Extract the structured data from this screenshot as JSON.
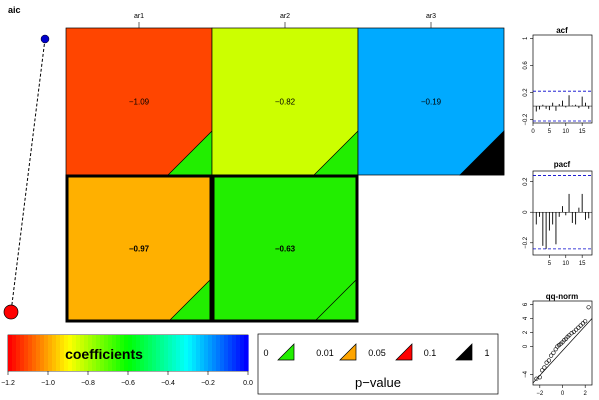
{
  "chart_data": [
    {
      "type": "heatmap",
      "title": "",
      "columns": [
        "ar1",
        "ar2",
        "ar3"
      ],
      "rows": [
        [
          {
            "value": -1.09,
            "color": "#FF4500",
            "pvalue_marker": "green",
            "highlighted": false
          },
          {
            "value": -0.82,
            "color": "#CCFF00",
            "pvalue_marker": "green",
            "highlighted": false
          },
          {
            "value": -0.19,
            "color": "#00AAFF",
            "pvalue_marker": "black",
            "highlighted": false
          }
        ],
        [
          {
            "value": -0.97,
            "color": "#FFB000",
            "pvalue_marker": "green",
            "highlighted": true
          },
          {
            "value": -0.63,
            "color": "#22EE00",
            "pvalue_marker": "green",
            "highlighted": true
          },
          null
        ]
      ],
      "row_selector": {
        "label": "aic",
        "points": [
          {
            "row": 1,
            "color": "#0000CC"
          },
          {
            "row": 2,
            "color": "#FF0000"
          }
        ]
      }
    },
    {
      "type": "bar",
      "title": "acf",
      "x": [
        1,
        2,
        3,
        4,
        5,
        6,
        7,
        8,
        9,
        10,
        11,
        12,
        13,
        14,
        15,
        16,
        17
      ],
      "values": [
        -0.08,
        -0.05,
        0.02,
        -0.04,
        -0.06,
        0.05,
        -0.07,
        0.03,
        0.08,
        -0.02,
        0.16,
        0.01,
        0.02,
        -0.03,
        0.14,
        0.05,
        -0.04
      ],
      "xticks": [
        0,
        5,
        10,
        15
      ],
      "yticks": [
        -0.2,
        0.2,
        0.6,
        1.0
      ],
      "ylim": [
        -0.25,
        1.05
      ],
      "conf_band": 0.22
    },
    {
      "type": "bar",
      "title": "pacf",
      "x": [
        1,
        2,
        3,
        4,
        5,
        6,
        7,
        8,
        9,
        10,
        11,
        12,
        13,
        14,
        15,
        16,
        17
      ],
      "values": [
        -0.08,
        -0.03,
        -0.22,
        -0.24,
        -0.12,
        -0.08,
        -0.21,
        -0.03,
        0.04,
        -0.02,
        0.12,
        -0.07,
        -0.08,
        0.03,
        0.12,
        -0.05,
        -0.04
      ],
      "xticks": [
        5,
        10,
        15
      ],
      "yticks": [
        -0.2,
        0.0,
        0.2
      ],
      "ylim": [
        -0.28,
        0.27
      ],
      "conf_band": 0.24
    },
    {
      "type": "scatter",
      "title": "qq-norm",
      "xticks": [
        -2,
        0,
        2
      ],
      "yticks": [
        -4,
        0,
        2,
        4,
        6
      ],
      "xlim": [
        -2.6,
        2.6
      ],
      "ylim": [
        -5.5,
        6.5
      ],
      "reference_line": [
        [
          -2.6,
          -5.2
        ],
        [
          2.6,
          4.0
        ]
      ],
      "points": [
        [
          -2.3,
          -4.6
        ],
        [
          -2.0,
          -4.4
        ],
        [
          -1.8,
          -3.4
        ],
        [
          -1.6,
          -3.0
        ],
        [
          -1.4,
          -2.3
        ],
        [
          -1.2,
          -2.0
        ],
        [
          -1.0,
          -1.3
        ],
        [
          -0.8,
          -0.9
        ],
        [
          -0.6,
          -0.4
        ],
        [
          -0.45,
          0.0
        ],
        [
          -0.3,
          0.2
        ],
        [
          -0.15,
          0.4
        ],
        [
          0.0,
          0.6
        ],
        [
          0.15,
          0.9
        ],
        [
          0.3,
          1.1
        ],
        [
          0.45,
          1.4
        ],
        [
          0.6,
          1.6
        ],
        [
          0.8,
          1.9
        ],
        [
          1.0,
          2.1
        ],
        [
          1.2,
          2.4
        ],
        [
          1.4,
          2.7
        ],
        [
          1.6,
          3.0
        ],
        [
          1.8,
          3.3
        ],
        [
          2.0,
          3.6
        ],
        [
          2.3,
          5.6
        ]
      ]
    }
  ],
  "legend_colorbar": {
    "title": "coefficients",
    "ticks": [
      "−1.2",
      "−1.0",
      "−0.8",
      "−0.6",
      "−0.4",
      "−0.2",
      "0.0"
    ],
    "range": [
      -1.2,
      0.0
    ]
  },
  "legend_pvalue": {
    "title": "p−value",
    "labels": [
      "0",
      "0.01",
      "0.05",
      "0.1",
      "1"
    ],
    "marker_colors": [
      "#22EE00",
      "#FFA500",
      "#FF0000",
      "#000000"
    ]
  },
  "colors": {
    "selector_line": "#000000",
    "conf_band": "#0000CC"
  }
}
